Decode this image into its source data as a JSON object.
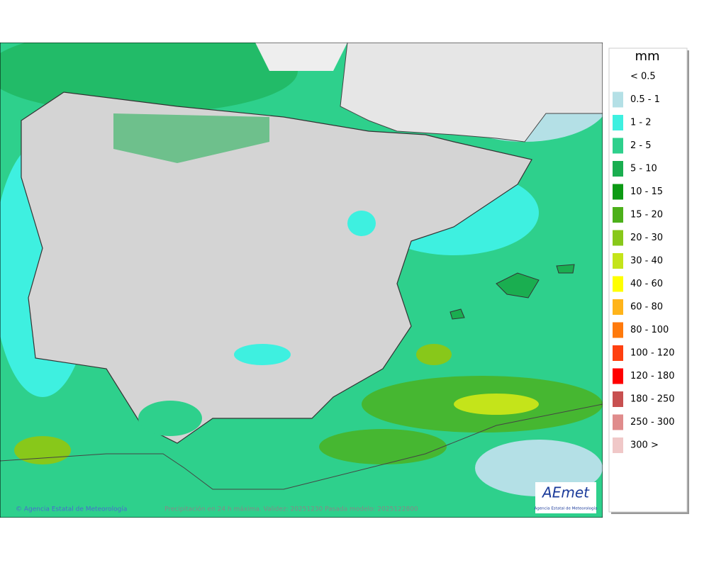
{
  "legend": {
    "title": "mm",
    "items": [
      {
        "label": "< 0.5"
      },
      {
        "label": "0.5 - 1",
        "color": "#b4e0e6"
      },
      {
        "label": "1 - 2",
        "color": "#3ef0e0"
      },
      {
        "label": "2 - 5",
        "color": "#2ed08c"
      },
      {
        "label": "5 - 10",
        "color": "#1aae50"
      },
      {
        "label": "10 - 15",
        "color": "#0c9a14"
      },
      {
        "label": "15 - 20",
        "color": "#4cb01a"
      },
      {
        "label": "20 - 30",
        "color": "#88c81a"
      },
      {
        "label": "30 - 40",
        "color": "#c4e41a"
      },
      {
        "label": "40 - 60",
        "color": "#ffff00"
      },
      {
        "label": "60 - 80",
        "color": "#ffb41a"
      },
      {
        "label": "80 - 100",
        "color": "#ff7a0c"
      },
      {
        "label": "100 - 120",
        "color": "#ff4010"
      },
      {
        "label": "120 - 180",
        "color": "#ff0000"
      },
      {
        "label": "180 - 250",
        "color": "#c85050"
      },
      {
        "label": "250 - 300",
        "color": "#e08c8c"
      },
      {
        "label": "300 >",
        "color": "#f0c8c8"
      }
    ]
  },
  "footer": {
    "copyright": "© Agencia Estatal de Meteorología",
    "caption": "Precipitación en 24 h máxima. Validez: 20251230 Pasada modelo: 2025122800"
  },
  "logo": {
    "name": "AEmet",
    "subtitle": "Agencia Estatal de Meteorología"
  }
}
